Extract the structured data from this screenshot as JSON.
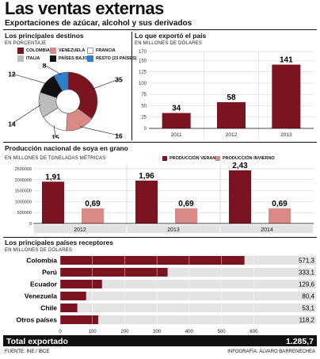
{
  "header": {
    "title": "Las ventas externas",
    "subtitle": "Exportaciones de azúcar, alcohol y sus derivados"
  },
  "destinos": {
    "title": "Los principales destinos",
    "unit": "EN PORCENTAJE",
    "legend": [
      {
        "label": "COLOMBIA",
        "color": "#7b1420"
      },
      {
        "label": "VENEZUELA",
        "color": "#d98a86"
      },
      {
        "label": "FRANCIA",
        "color": "#ffffff"
      },
      {
        "label": "ITALIA",
        "color": "#bcbcbc"
      },
      {
        "label": "PAÍSES BAJOS",
        "color": "#111111"
      },
      {
        "label": "RESTO (23 PAÍSES)",
        "color": "#2e7fd0"
      }
    ]
  },
  "exporto": {
    "title": "Lo que exportó el país",
    "unit": "EN MILLONES DE DÓLARES"
  },
  "soya": {
    "title": "Producción nacional de soya en grano",
    "unit": "EN MILLONES DE TONELADAS MÉTRICAS",
    "legend": [
      {
        "label": "PRODUCCIÓN VERANO",
        "color": "#7b1420"
      },
      {
        "label": "PRODUCCIÓN INVIERNO",
        "color": "#d98a86"
      }
    ]
  },
  "receptores": {
    "title": "Los principales países receptores",
    "unit": "EN MILLONES DE DÓLARES",
    "total_label": "Total exportado",
    "total_value": "1.285,7"
  },
  "footer": {
    "source": "FUENTE: INE / IBCE",
    "credit": "INFOGRAFÍA: ÁLVARO BARRENECHEA"
  },
  "chart_data": [
    {
      "type": "pie",
      "labels": [
        "COLOMBIA",
        "VENEZUELA",
        "FRANCIA",
        "ITALIA",
        "PAÍSES BAJOS",
        "RESTO (23 PAÍSES)"
      ],
      "values": [
        35,
        16,
        15,
        14,
        12,
        8
      ],
      "colors": [
        "#7b1420",
        "#d98a86",
        "#ffffff",
        "#bcbcbc",
        "#111111",
        "#2e7fd0"
      ]
    },
    {
      "type": "bar",
      "categories": [
        "2011",
        "2012",
        "2013"
      ],
      "values": [
        34,
        58,
        141
      ],
      "ylim": [
        0,
        170
      ],
      "yticks": [
        "0",
        "25",
        "50",
        "75",
        "100",
        "125",
        "150",
        "170"
      ],
      "color": "#7b1420"
    },
    {
      "type": "bar",
      "categories": [
        "2012",
        "2013",
        "2014"
      ],
      "series": [
        {
          "name": "PRODUCCIÓN VERANO",
          "values": [
            1.91,
            1.96,
            2.43
          ],
          "labels": [
            "1,91",
            "1,96",
            "2,43"
          ],
          "color": "#7b1420"
        },
        {
          "name": "PRODUCCIÓN INVIERNO",
          "values": [
            0.69,
            0.69,
            0.69
          ],
          "labels": [
            "0,69",
            "0,69",
            "0,69"
          ],
          "color": "#d98a86"
        }
      ],
      "ylim": [
        0,
        2500000
      ],
      "yticks": [
        "0",
        "500000",
        "1000000",
        "1500000",
        "2000000",
        "2500000"
      ]
    },
    {
      "type": "bar",
      "orientation": "horizontal",
      "categories": [
        "Colombia",
        "Perú",
        "Ecuador",
        "Venezuela",
        "Chile",
        "Otros países"
      ],
      "values": [
        571.3,
        333.1,
        129.6,
        80.4,
        53.1,
        118.2
      ],
      "labels": [
        "571,3",
        "333,1",
        "129,6",
        "80,4",
        "53,1",
        "118,2"
      ],
      "xlim": [
        0,
        700
      ],
      "xticks": [
        "0",
        "100",
        "200",
        "300",
        "400",
        "500",
        "600"
      ],
      "color": "#7b1420"
    }
  ]
}
